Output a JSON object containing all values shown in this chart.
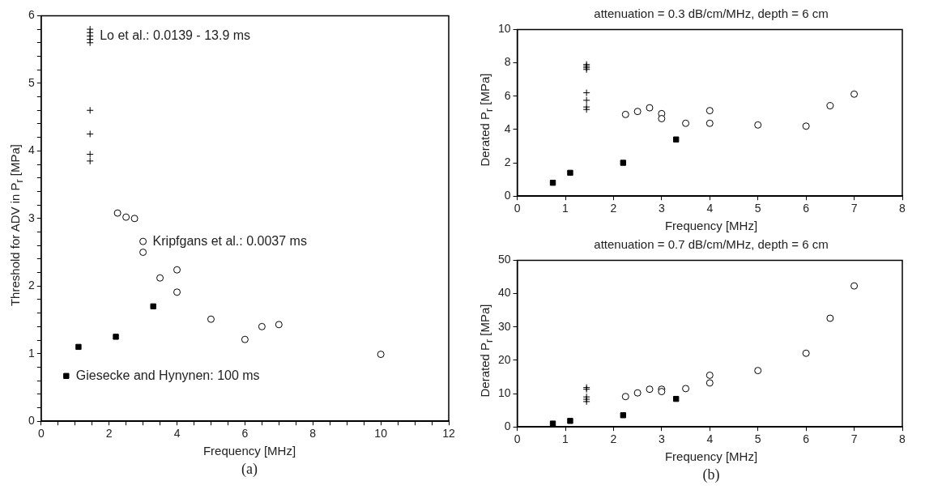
{
  "chart_data": [
    {
      "type": "scatter",
      "xlabel": "Frequency [MHz]",
      "ylabel": "Threshold for ADV in P$_{r}$ [MPa]",
      "xlim": [
        0,
        12
      ],
      "ylim": [
        0,
        6
      ],
      "xticks": [
        0,
        {
          "value": 0.5,
          "label": null
        },
        {
          "value": 1,
          "label": null
        },
        {
          "value": 1.5,
          "label": null
        },
        2,
        {
          "value": 2.5,
          "label": null
        },
        {
          "value": 3,
          "label": null
        },
        {
          "value": 3.5,
          "label": null
        },
        4,
        {
          "value": 4.5,
          "label": null
        },
        {
          "value": 5,
          "label": null
        },
        {
          "value": 5.5,
          "label": null
        },
        6,
        {
          "value": 6.5,
          "label": null
        },
        {
          "value": 7,
          "label": null
        },
        {
          "value": 7.5,
          "label": null
        },
        8,
        {
          "value": 8.5,
          "label": null
        },
        {
          "value": 9,
          "label": null
        },
        {
          "value": 9.5,
          "label": null
        },
        10,
        {
          "value": 10.5,
          "label": null
        },
        {
          "value": 11,
          "label": null
        },
        {
          "value": 11.5,
          "label": null
        },
        12
      ],
      "yticks": [
        0,
        {
          "value": 0.2,
          "label": null
        },
        {
          "value": 0.4,
          "label": null
        },
        {
          "value": 0.6,
          "label": null
        },
        {
          "value": 0.8,
          "label": null
        },
        1,
        {
          "value": 1.2,
          "label": null
        },
        {
          "value": 1.4,
          "label": null
        },
        {
          "value": 1.6,
          "label": null
        },
        {
          "value": 1.8,
          "label": null
        },
        2,
        {
          "value": 2.2,
          "label": null
        },
        {
          "value": 2.4,
          "label": null
        },
        {
          "value": 2.6,
          "label": null
        },
        {
          "value": 2.8,
          "label": null
        },
        3,
        {
          "value": 3.2,
          "label": null
        },
        {
          "value": 3.4,
          "label": null
        },
        {
          "value": 3.6,
          "label": null
        },
        {
          "value": 3.8,
          "label": null
        },
        4,
        {
          "value": 4.2,
          "label": null
        },
        {
          "value": 4.4,
          "label": null
        },
        {
          "value": 4.6,
          "label": null
        },
        {
          "value": 4.8,
          "label": null
        },
        5,
        {
          "value": 5.2,
          "label": null
        },
        {
          "value": 5.4,
          "label": null
        },
        {
          "value": 5.6,
          "label": null
        },
        {
          "value": 5.8,
          "label": null
        },
        6
      ],
      "grid": false,
      "legend": false,
      "series": [
        {
          "color": "#000000",
          "marker": "cross",
          "x": [
            1.44,
            1.44,
            1.44,
            1.44,
            1.44,
            1.44,
            1.44,
            1.44,
            1.44
          ],
          "values": [
            5.8,
            5.75,
            5.7,
            5.65,
            5.6,
            4.6,
            4.25,
            3.95,
            3.85
          ]
        },
        {
          "color": "#000000",
          "marker": "circle",
          "x": [
            2.25,
            2.5,
            2.75,
            3,
            3,
            3.5,
            4,
            4,
            5,
            6,
            6.5,
            7,
            10
          ],
          "values": [
            3.08,
            3.02,
            3.0,
            2.66,
            2.5,
            2.12,
            2.24,
            1.91,
            1.51,
            1.21,
            1.4,
            1.43,
            0.99
          ]
        },
        {
          "color": "#000000",
          "marker": "square",
          "x": [
            0.74,
            1.1,
            2.2,
            3.3
          ],
          "values": [
            0.67,
            1.1,
            1.25,
            1.7
          ]
        }
      ],
      "annotations": [
        {
          "text": "Lo et al.: 0.0139 - 13.9 ms",
          "x": 1.44,
          "y": 5.7
        },
        {
          "text": "Kripfgans et al.: 0.0037 ms",
          "x": 3,
          "y": 2.66
        },
        {
          "text": "Giesecke and Hynynen: 100 ms",
          "x": 0.74,
          "y": 0.67
        },
        "(a)"
      ]
    },
    {
      "type": "scatter",
      "title": "attenuation  = 0.3 dB/cm/MHz, depth = 6 cm",
      "xlabel": "Frequency [MHz]",
      "ylabel": "Derated P$_{r}$ [MPa]",
      "xlim": [
        0,
        8
      ],
      "ylim": [
        0,
        10
      ],
      "xticks": [
        0,
        1,
        2,
        3,
        4,
        5,
        6,
        7,
        8
      ],
      "yticks": [
        0,
        2,
        4,
        6,
        8,
        10
      ],
      "grid": false,
      "legend": false,
      "series": [
        {
          "color": "#000000",
          "marker": "cross",
          "x": [
            1.44,
            1.44,
            1.44,
            1.44,
            1.44,
            1.44,
            1.44,
            1.44
          ],
          "values": [
            7.9,
            7.8,
            7.7,
            7.6,
            6.2,
            5.75,
            5.35,
            5.2
          ]
        },
        {
          "color": "#000000",
          "marker": "circle",
          "x": [
            2.25,
            2.5,
            2.75,
            3,
            3,
            3.5,
            4,
            4,
            5,
            6,
            6.5,
            7
          ],
          "values": [
            4.9,
            5.08,
            5.3,
            4.95,
            4.65,
            4.37,
            5.13,
            4.37,
            4.27,
            4.2,
            5.42,
            6.12
          ]
        },
        {
          "color": "#000000",
          "marker": "square",
          "x": [
            0.74,
            1.1,
            2.2,
            3.3
          ],
          "values": [
            0.8,
            1.4,
            2.0,
            3.4
          ]
        }
      ]
    },
    {
      "type": "scatter",
      "title": "attenuation  = 0.7 dB/cm/MHz, depth = 6 cm",
      "xlabel": "Frequency [MHz]",
      "ylabel": "Derated P$_{r}$ [MPa]",
      "xlim": [
        0,
        8
      ],
      "ylim": [
        0,
        50
      ],
      "xticks": [
        0,
        1,
        2,
        3,
        4,
        5,
        6,
        7,
        8
      ],
      "yticks": [
        0,
        10,
        20,
        30,
        40,
        50
      ],
      "grid": false,
      "legend": false,
      "series": [
        {
          "color": "#000000",
          "marker": "cross",
          "x": [
            1.44,
            1.44,
            1.44,
            1.44,
            1.44
          ],
          "values": [
            11.8,
            11.3,
            9,
            8.3,
            7.6
          ]
        },
        {
          "color": "#000000",
          "marker": "circle",
          "x": [
            2.25,
            2.5,
            2.75,
            3,
            3,
            3.5,
            4,
            4,
            5,
            6,
            6.5,
            7
          ],
          "values": [
            9.1,
            10.2,
            11.3,
            11.3,
            10.6,
            11.5,
            15.5,
            13.2,
            16.9,
            22.1,
            32.6,
            42.3
          ]
        },
        {
          "color": "#000000",
          "marker": "square",
          "x": [
            0.74,
            1.1,
            2.2,
            3.3
          ],
          "values": [
            1.0,
            1.8,
            3.5,
            8.4
          ]
        }
      ],
      "annotations": [
        "(b)"
      ]
    }
  ]
}
